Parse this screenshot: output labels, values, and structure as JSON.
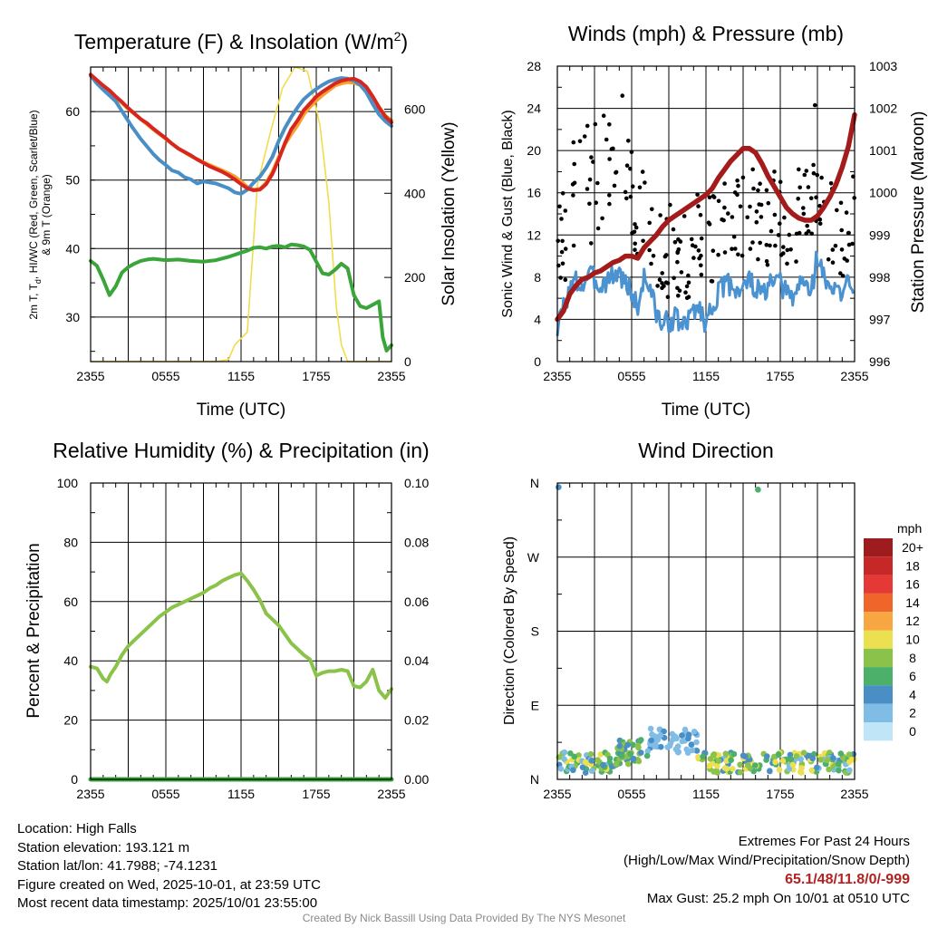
{
  "chart_data": [
    {
      "id": "temperature",
      "type": "line",
      "title": "Temperature (F) & Insolation (W/m",
      "title_superscript": "2",
      "title_close": ")",
      "xlabel": "Time (UTC)",
      "ylabel_lines": [
        "2m T, T",
        "d",
        ", HI/WC (Red, Green, Scarlet/Blue)",
        "& 9m T (Orange)"
      ],
      "ylabel_right": "Solar Insolation (Yellow)",
      "x_ticks": [
        "2355",
        "0555",
        "1155",
        "1755",
        "2355"
      ],
      "ylim": [
        23.5,
        66.5
      ],
      "y_ticks": [
        30,
        40,
        50,
        60
      ],
      "ylim_right": [
        0,
        700
      ],
      "y_ticks_right": [
        0,
        200,
        400,
        600
      ],
      "grid": true,
      "series": [
        {
          "name": "Solar Insolation",
          "axis": "right",
          "color": "#f2dc4e",
          "width": 1.6,
          "x": [
            0,
            10,
            11,
            11.5,
            12.5,
            13.3,
            14.3,
            15.3,
            16.3,
            17.3,
            18.3,
            19,
            19.6,
            20,
            20.5,
            24
          ],
          "values": [
            0,
            0,
            5,
            40,
            70,
            420,
            540,
            650,
            700,
            690,
            560,
            380,
            130,
            40,
            0,
            0
          ]
        },
        {
          "name": "9m T",
          "color": "#f5a030",
          "width": 4,
          "x": [
            0,
            0.5,
            1,
            2,
            3,
            4,
            5,
            6,
            7,
            8,
            9,
            10,
            11,
            11.5,
            12,
            12.5,
            13,
            13.5,
            14,
            14.5,
            15,
            15.5,
            16,
            16.5,
            17,
            17.5,
            18,
            18.5,
            19,
            19.5,
            20,
            20.5,
            21,
            21.5,
            22,
            22.5,
            23,
            23.5,
            24
          ],
          "values": [
            65.2,
            64.2,
            63.6,
            62.1,
            60.4,
            58.9,
            57.4,
            56,
            54.6,
            53.5,
            52.6,
            51.8,
            51,
            50.5,
            49.8,
            49,
            48.6,
            48.7,
            49.6,
            51.2,
            53.3,
            55.2,
            56.7,
            58,
            59.6,
            60.7,
            61.6,
            62.4,
            63.1,
            63.8,
            64.1,
            64.3,
            64.2,
            63.9,
            63.3,
            62.2,
            60.7,
            59.4,
            58.7
          ]
        },
        {
          "name": "HI/WC",
          "color": "#4a8ec6",
          "width": 4,
          "x": [
            0,
            0.5,
            1,
            2,
            2.7,
            3.3,
            4,
            5,
            5.5,
            6,
            6.5,
            7,
            7.5,
            8,
            8.5,
            9,
            10,
            11,
            11.5,
            12,
            12.5,
            13,
            13.5,
            14,
            14.5,
            15,
            15.5,
            16,
            16.5,
            17,
            17.5,
            18,
            18.5,
            19,
            19.5,
            20,
            20.5,
            21,
            21.5,
            22,
            22.5,
            23,
            23.5,
            24
          ],
          "values": [
            65.3,
            64.1,
            63.2,
            61.5,
            59.5,
            57.8,
            56,
            53.8,
            52.9,
            52.2,
            51.4,
            51.1,
            50.4,
            50.1,
            49.5,
            49.8,
            49.5,
            48.8,
            48.2,
            48,
            48.6,
            49.6,
            50.5,
            51.8,
            53.4,
            55.7,
            57.6,
            59.2,
            60.6,
            61.8,
            62.6,
            63.3,
            63.9,
            64.4,
            64.7,
            64.9,
            64.8,
            64.5,
            63.9,
            62.8,
            61.1,
            59.6,
            58.6,
            57.9
          ]
        },
        {
          "name": "2m T",
          "color": "#d7261e",
          "width": 4,
          "x": [
            0,
            0.5,
            1,
            1.5,
            2,
            2.5,
            3,
            3.5,
            4,
            4.5,
            5,
            5.5,
            6,
            6.5,
            7,
            7.5,
            8,
            8.5,
            9,
            9.5,
            10,
            10.5,
            11,
            11.5,
            12,
            12.5,
            13,
            13.5,
            14,
            14.5,
            15,
            15.5,
            16,
            16.5,
            17,
            17.5,
            18,
            18.5,
            19,
            19.5,
            20,
            20.5,
            21,
            21.5,
            22,
            22.5,
            23,
            23.5,
            24
          ],
          "values": [
            65.4,
            64.6,
            63.8,
            63.1,
            62.2,
            61.4,
            60.5,
            59.7,
            58.9,
            58.3,
            57.5,
            56.8,
            56.1,
            55.3,
            54.6,
            54.1,
            53.6,
            53,
            52.5,
            52,
            51.6,
            51.2,
            50.7,
            50.1,
            49.4,
            48.8,
            48.5,
            48.6,
            49.4,
            50.9,
            53,
            55.4,
            57.4,
            58.7,
            60.2,
            61.2,
            62.2,
            62.9,
            63.5,
            64.1,
            64.5,
            64.7,
            64.8,
            64.4,
            63.6,
            62.2,
            60.6,
            59.3,
            58.4
          ]
        },
        {
          "name": "Td",
          "color": "#3aa53a",
          "width": 4,
          "x": [
            0,
            0.5,
            1,
            1.5,
            2,
            2.5,
            3,
            3.5,
            4,
            4.5,
            5,
            6,
            7,
            8,
            9,
            10,
            11,
            12,
            12.5,
            13,
            13.5,
            14,
            14.5,
            15,
            15.5,
            16,
            16.5,
            17,
            17.5,
            18,
            18.5,
            19,
            19.5,
            20,
            20.5,
            21,
            21.5,
            22,
            22.5,
            23,
            23.3,
            23.6,
            24
          ],
          "values": [
            38.2,
            37.5,
            35.5,
            33.2,
            34.5,
            36.5,
            37.3,
            37.8,
            38.2,
            38.4,
            38.5,
            38.3,
            38.4,
            38.2,
            38.1,
            38.3,
            38.8,
            39.4,
            39.7,
            40.1,
            40.2,
            40,
            40.3,
            40.4,
            40.2,
            40.6,
            40.5,
            40.3,
            39.8,
            38.1,
            36.4,
            36.2,
            36.9,
            37.8,
            37.1,
            33.2,
            31.6,
            31.3,
            31.8,
            32.3,
            27.1,
            25.1,
            25.9
          ]
        }
      ]
    },
    {
      "id": "winds",
      "type": "line",
      "title": "Winds (mph) & Pressure (mb)",
      "xlabel": "Time (UTC)",
      "ylabel": "Sonic Wind & Gust (Blue, Black)",
      "ylabel_right": "Station Pressure (Maroon)",
      "x_ticks": [
        "2355",
        "0555",
        "1155",
        "1755",
        "2355"
      ],
      "ylim": [
        0,
        28
      ],
      "y_ticks": [
        0,
        4,
        8,
        12,
        16,
        20,
        24,
        28
      ],
      "ylim_right": [
        996,
        1003
      ],
      "y_ticks_right": [
        996,
        997,
        998,
        999,
        1000,
        1001,
        1002,
        1003
      ],
      "grid": true,
      "series": [
        {
          "name": "Sonic Wind",
          "color": "#4a92d0",
          "width": 3,
          "x": [
            0,
            0.5,
            1,
            1.5,
            2,
            2.5,
            3,
            3.5,
            4,
            4.5,
            5,
            5.5,
            6,
            6.5,
            7,
            7.5,
            8,
            8.5,
            9,
            9.5,
            10,
            10.5,
            11,
            11.5,
            12,
            12.5,
            13,
            13.5,
            14,
            14.5,
            15,
            15.5,
            16,
            16.5,
            17,
            17.5,
            18,
            18.5,
            19,
            19.5,
            20,
            20.5,
            21,
            21.5,
            22,
            22.5,
            23,
            23.5,
            24
          ],
          "values": [
            3,
            5.2,
            6.8,
            7.6,
            7.1,
            8.3,
            7.8,
            7.2,
            7.8,
            8.2,
            8.4,
            7.4,
            6.6,
            5,
            8.1,
            7,
            4.5,
            3.5,
            3.8,
            4.2,
            3.5,
            3.5,
            5.2,
            5,
            3.6,
            5.3,
            6.5,
            7.2,
            7.4,
            6.8,
            7.1,
            7.7,
            6.9,
            6.4,
            6.9,
            7.6,
            7.3,
            6.6,
            5.8,
            7.4,
            7.5,
            6.6,
            10.2,
            8.1,
            6.6,
            7.3,
            5.6,
            8.1,
            7.1
          ]
        },
        {
          "name": "Station Pressure",
          "axis": "right",
          "color": "#a31b1b",
          "width": 5.5,
          "x": [
            0,
            0.5,
            1,
            1.5,
            2,
            2.5,
            3,
            3.5,
            4,
            4.5,
            5,
            5.5,
            6,
            6.5,
            7,
            7.5,
            8,
            8.5,
            9,
            9.5,
            10,
            10.5,
            11,
            11.5,
            12,
            12.5,
            13,
            13.5,
            14,
            14.5,
            15,
            15.5,
            16,
            16.5,
            17,
            17.5,
            18,
            18.5,
            19,
            19.5,
            20,
            20.5,
            21,
            21.5,
            22,
            22.5,
            23,
            23.5,
            24
          ],
          "values": [
            997,
            997.2,
            997.6,
            997.8,
            997.95,
            998,
            998.1,
            998.15,
            998.25,
            998.35,
            998.4,
            998.5,
            998.5,
            998.45,
            998.7,
            998.85,
            999,
            999.2,
            999.35,
            999.45,
            999.55,
            999.65,
            999.75,
            999.85,
            999.95,
            1000.1,
            1000.35,
            1000.55,
            1000.75,
            1000.9,
            1001.05,
            1001.05,
            1000.95,
            1000.7,
            1000.4,
            1000.15,
            999.9,
            999.65,
            999.5,
            999.4,
            999.35,
            999.35,
            999.45,
            999.65,
            999.9,
            1000.2,
            1000.6,
            1001.1,
            1001.85
          ]
        }
      ],
      "gusts": {
        "name": "Gust",
        "color": "#000000",
        "seed": 7,
        "count": 230,
        "max_value": 25.2,
        "max_time": 5.25
      }
    },
    {
      "id": "humidity",
      "type": "line",
      "title": "Relative Humidity (%) & Precipitation (in)",
      "ylabel": "Percent & Precipitation",
      "x_ticks": [
        "2355",
        "0555",
        "1155",
        "1755",
        "2355"
      ],
      "ylim": [
        0,
        100
      ],
      "y_ticks": [
        0,
        20,
        40,
        60,
        80,
        100
      ],
      "ylim_right": [
        0,
        0.1
      ],
      "y_ticks_right": [
        "0.00",
        "0.02",
        "0.04",
        "0.06",
        "0.08",
        "0.10"
      ],
      "grid": true,
      "series": [
        {
          "name": "Relative Humidity",
          "color": "#8bc34a",
          "width": 4,
          "x": [
            0,
            0.5,
            1,
            1.3,
            1.6,
            2,
            2.5,
            3,
            3.5,
            4,
            4.5,
            5,
            5.5,
            6,
            6.5,
            7,
            7.5,
            8,
            8.5,
            9,
            9.5,
            10,
            10.5,
            11,
            11.5,
            12,
            12.5,
            13,
            13.5,
            14,
            14.5,
            15,
            15.5,
            16,
            16.5,
            17,
            17.5,
            18,
            18.5,
            19,
            19.5,
            20,
            20.5,
            21,
            21.5,
            22,
            22.5,
            23,
            23.5,
            24
          ],
          "values": [
            38,
            37.5,
            34,
            33,
            35.5,
            38,
            42,
            45,
            47,
            49,
            51,
            53,
            55,
            56.5,
            58,
            59,
            60,
            61,
            62,
            63,
            64.5,
            65.5,
            67,
            68,
            69,
            69.5,
            67,
            64,
            60.5,
            56,
            54,
            52,
            49,
            46,
            44,
            42,
            40.5,
            35,
            36,
            36.5,
            36.5,
            37,
            36.5,
            31.5,
            31,
            33,
            37,
            30,
            27.5,
            30.5
          ]
        },
        {
          "name": "Precipitation",
          "axis": "right",
          "color": "#3aa53a",
          "width": 5,
          "x": [
            0,
            24
          ],
          "values": [
            0,
            0
          ]
        }
      ]
    },
    {
      "id": "wind_direction",
      "type": "scatter",
      "title": "Wind Direction",
      "ylabel": "Direction (Colored By Speed)",
      "x_ticks": [
        "2355",
        "0555",
        "1155",
        "1755",
        "2355"
      ],
      "y_ticks": [
        "N",
        "E",
        "S",
        "W",
        "N"
      ],
      "ylim": [
        0,
        360
      ],
      "grid": true,
      "legend": {
        "unit": "mph",
        "labels": [
          "20+",
          "18",
          "16",
          "14",
          "12",
          "10",
          "8",
          "6",
          "4",
          "2",
          "0"
        ],
        "colors": [
          "#9e1b1e",
          "#c62828",
          "#e53935",
          "#f0652a",
          "#f8a641",
          "#eae050",
          "#8bc34a",
          "#4caf6a",
          "#4a8ec6",
          "#7fbde6",
          "#bfe5f7"
        ]
      },
      "seed": 13,
      "outliers": [
        {
          "x": 0.1,
          "value": 355,
          "speed": 3
        },
        {
          "x": 16.2,
          "value": 352,
          "speed": 6
        }
      ]
    }
  ],
  "footer": {
    "location": "Location: High Falls",
    "elevation": "Station elevation: 193.121 m",
    "latlon": "Station lat/lon: 41.7988; -74.1231",
    "created": "Figure created on Wed, 2025-10-01, at 23:59 UTC",
    "recent": "Most recent data timestamp: 2025/10/01 23:55:00",
    "extremes_title": "Extremes For Past 24 Hours",
    "extremes_subtitle": "(High/Low/Max Wind/Precipitation/Snow Depth)",
    "extremes_values": "65.1/48/11.8/0/-999",
    "max_gust": "Max Gust: 25.2 mph On 10/01 at 0510 UTC",
    "credit": "Created By Nick Bassill Using Data Provided By The NYS Mesonet"
  }
}
